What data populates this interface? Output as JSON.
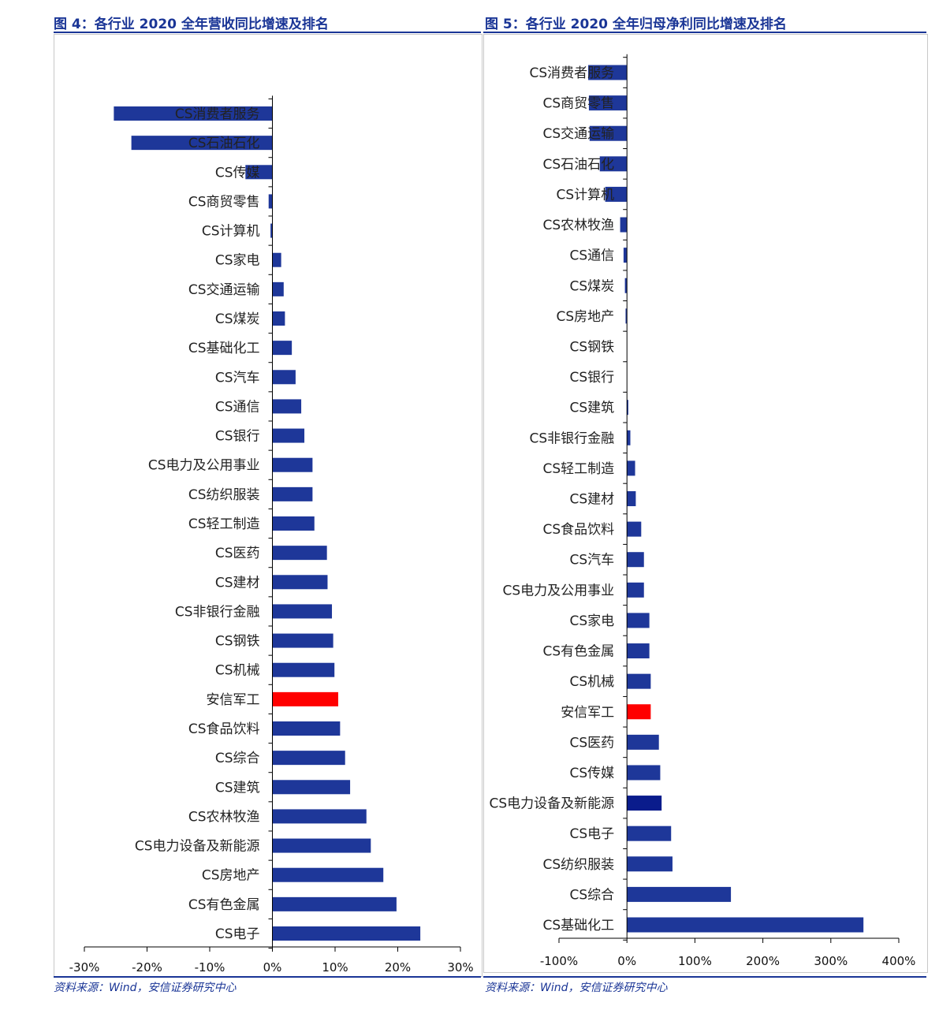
{
  "charts": [
    {
      "figure_title": "图 4：各行业 2020 全年营收同比增速及排名",
      "source": "资料来源：Wind，安信证券研究中心"
    },
    {
      "figure_title": "图 5：各行业 2020 全年归母净利同比增速及排名",
      "source": "资料来源：Wind，安信证券研究中心"
    }
  ],
  "chart_data": [
    {
      "type": "bar",
      "orientation": "horizontal",
      "title": "图 4：各行业 2020 全年营收同比增速及排名",
      "xlim": [
        -30,
        30
      ],
      "x_ticks": [
        -30,
        -20,
        -10,
        0,
        10,
        20,
        30
      ],
      "x_tick_labels": [
        "-30%",
        "-20%",
        "-10%",
        "0%",
        "10%",
        "20%",
        "30%"
      ],
      "unit": "%",
      "grid": false,
      "colors": {
        "bar": "#1e3799",
        "highlight": "#ff0000"
      },
      "highlight_category": "安信军工",
      "categories": [
        "CS消费者服务",
        "CS石油石化",
        "CS传媒",
        "CS商贸零售",
        "CS计算机",
        "CS家电",
        "CS交通运输",
        "CS煤炭",
        "CS基础化工",
        "CS汽车",
        "CS通信",
        "CS银行",
        "CS电力及公用事业",
        "CS纺织服装",
        "CS轻工制造",
        "CS医药",
        "CS建材",
        "CS非银行金融",
        "CS钢铁",
        "CS机械",
        "安信军工",
        "CS食品饮料",
        "CS综合",
        "CS建筑",
        "CS农林牧渔",
        "CS电力设备及新能源",
        "CS房地产",
        "CS有色金属",
        "CS电子"
      ],
      "values": [
        -25.3,
        -22.5,
        -4.3,
        -0.6,
        -0.3,
        1.4,
        1.8,
        2.0,
        3.1,
        3.7,
        4.6,
        5.1,
        6.4,
        6.4,
        6.7,
        8.7,
        8.8,
        9.5,
        9.7,
        9.9,
        10.5,
        10.8,
        11.6,
        12.4,
        15.0,
        15.7,
        17.7,
        19.8,
        23.6
      ]
    },
    {
      "type": "bar",
      "orientation": "horizontal",
      "title": "图 5：各行业 2020 全年归母净利同比增速及排名",
      "xlim": [
        -100,
        400
      ],
      "x_ticks": [
        -100,
        0,
        100,
        200,
        300,
        400
      ],
      "x_tick_labels": [
        "-100%",
        "0%",
        "100%",
        "200%",
        "300%",
        "400%"
      ],
      "unit": "%",
      "grid": false,
      "colors": {
        "bar": "#1e3799",
        "highlight": "#ff0000",
        "emphasis": "#0a1c8c"
      },
      "highlight_category": "安信军工",
      "emphasis_category": "CS电力设备及新能源",
      "categories": [
        "CS消费者服务",
        "CS商贸零售",
        "CS交通运输",
        "CS石油石化",
        "CS计算机",
        "CS农林牧渔",
        "CS通信",
        "CS煤炭",
        "CS房地产",
        "CS钢铁",
        "CS银行",
        "CS建筑",
        "CS非银行金融",
        "CS轻工制造",
        "CS建材",
        "CS食品饮料",
        "CS汽车",
        "CS电力及公用事业",
        "CS家电",
        "CS有色金属",
        "CS机械",
        "安信军工",
        "CS医药",
        "CS传媒",
        "CS电力设备及新能源",
        "CS电子",
        "CS纺织服装",
        "CS综合",
        "CS基础化工"
      ],
      "values": [
        -57,
        -56,
        -55,
        -40,
        -32,
        -10,
        -5,
        -3,
        -2,
        0,
        0,
        2,
        5,
        12,
        13,
        21,
        25,
        25,
        33,
        33,
        35,
        35,
        47,
        49,
        51,
        65,
        67,
        153,
        348
      ]
    }
  ]
}
